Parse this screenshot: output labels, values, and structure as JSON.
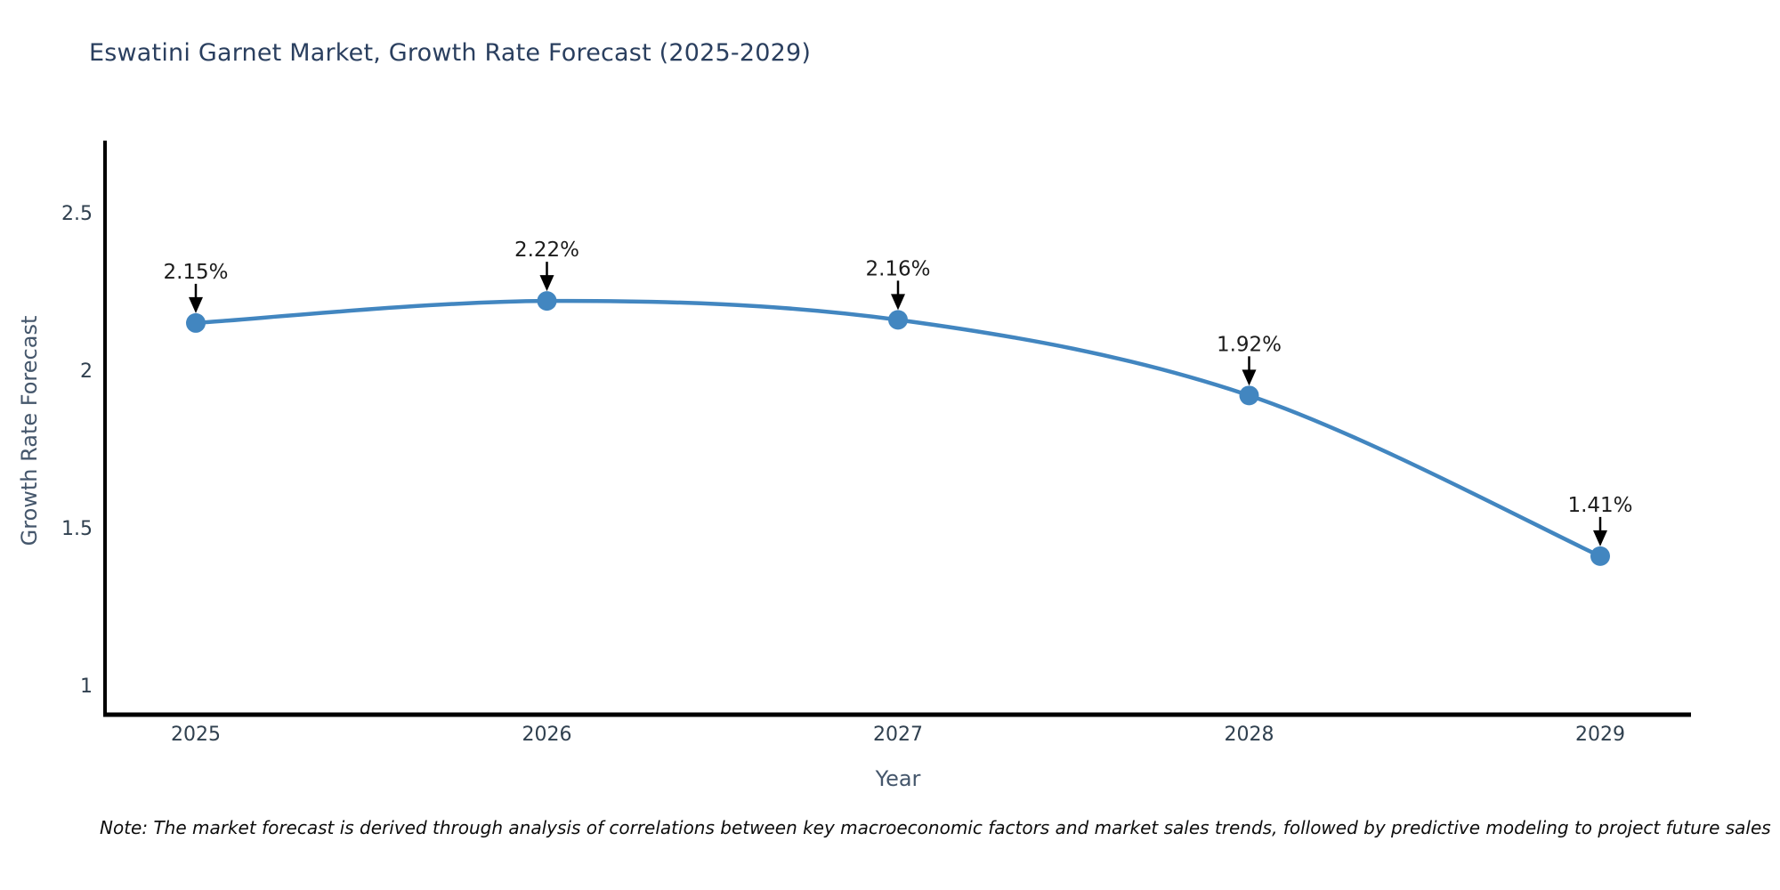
{
  "title": "Eswatini Garnet Market, Growth Rate Forecast (2025-2029)",
  "note": "Note: The market forecast is derived through analysis of correlations between key macroeconomic factors and market sales trends, followed by predictive modeling to project future sales",
  "chart_data": {
    "type": "line",
    "title": "Eswatini Garnet Market, Growth Rate Forecast (2025-2029)",
    "xlabel": "Year",
    "ylabel": "Growth Rate Forecast",
    "x": [
      2025,
      2026,
      2027,
      2028,
      2029
    ],
    "xticklabels": [
      "2025",
      "2026",
      "2027",
      "2028",
      "2029"
    ],
    "yticks": [
      1,
      1.5,
      2,
      2.5
    ],
    "ytick_labels": [
      "1",
      "1.5",
      "2",
      "2.5"
    ],
    "ylim": [
      0.91,
      2.72
    ],
    "xlim": [
      2024.74,
      2029.26
    ],
    "grid": false,
    "legend": "none",
    "line_shape": "spline",
    "series": [
      {
        "name": "Growth Rate Forecast",
        "values": [
          2.15,
          2.22,
          2.16,
          1.92,
          1.41
        ]
      }
    ],
    "point_labels": [
      "2.15%",
      "2.22%",
      "2.16%",
      "1.92%",
      "1.41%"
    ],
    "colors": {
      "line": "#4286c0",
      "marker": "#4286c0",
      "axis_line": "#000000",
      "annotation_text": "#1c1c1c",
      "annotation_arrow": "#000000",
      "tick_label": "#30404f",
      "axis_title": "#44566b",
      "title": "#2a3f5f",
      "background": "#ffffff"
    }
  }
}
